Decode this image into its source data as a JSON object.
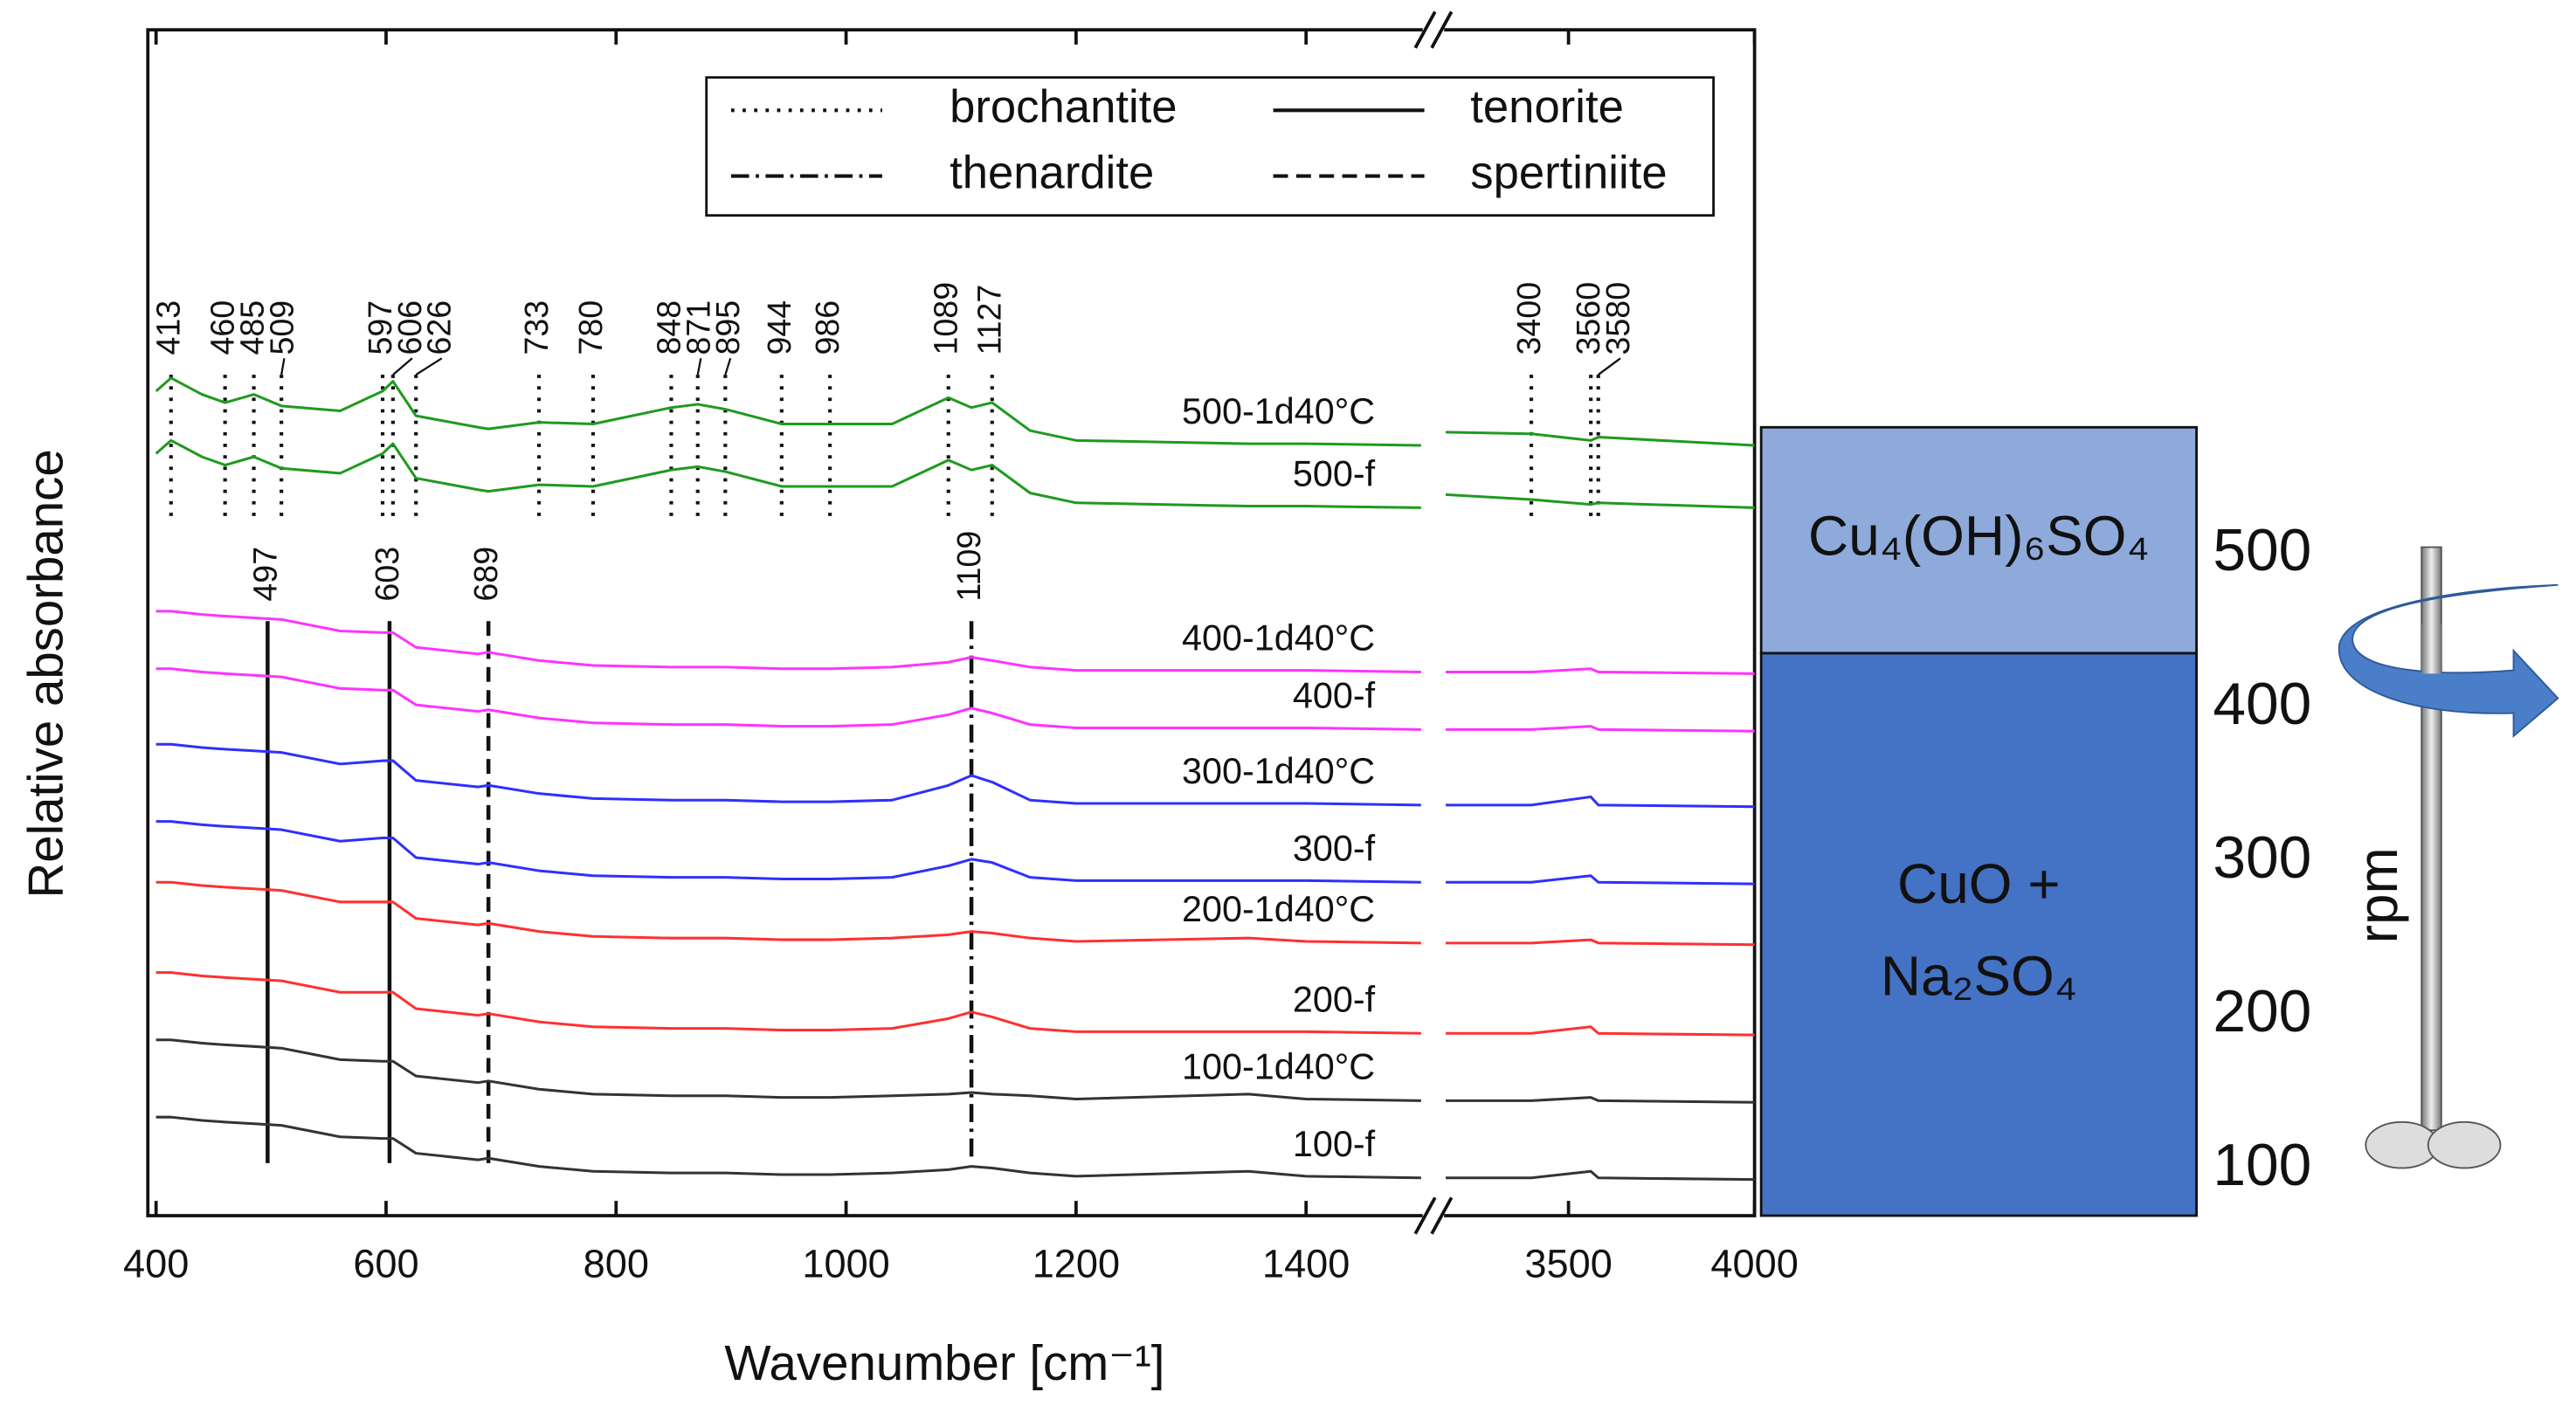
{
  "chart_data": [
    {
      "type": "line",
      "xlabel": "Wavenumber [cm⁻¹]",
      "ylabel": "Relative absorbance",
      "x": [
        400,
        413,
        440,
        460,
        485,
        509,
        560,
        597,
        606,
        626,
        680,
        689,
        733,
        780,
        848,
        871,
        895,
        944,
        986,
        1040,
        1089,
        1109,
        1127,
        1160,
        1200,
        1350,
        1400,
        1500,
        3170,
        3400,
        3560,
        3580,
        4000
      ],
      "xlim": [
        400,
        4000
      ],
      "xbreak": [
        1500,
        3170
      ],
      "xticks": [
        400,
        600,
        800,
        1000,
        1200,
        1400,
        3500,
        4000
      ],
      "ylim": [
        0,
        72.2
      ],
      "yticks": [],
      "series": [
        {
          "name": "500-1d40°C",
          "color": "#1f9a1f",
          "values": [
            50.2,
            51.0,
            50.0,
            49.5,
            50.0,
            49.3,
            49.0,
            50.2,
            50.8,
            48.7,
            48.0,
            47.9,
            48.3,
            48.2,
            49.2,
            49.4,
            49.1,
            48.2,
            48.2,
            48.2,
            49.8,
            49.2,
            49.5,
            47.8,
            47.2,
            47.0,
            47.0,
            46.9,
            47.7,
            47.6,
            47.2,
            47.4,
            46.9
          ]
        },
        {
          "name": "500-f",
          "color": "#1f9a1f",
          "values": [
            46.4,
            47.2,
            46.2,
            45.7,
            46.2,
            45.5,
            45.2,
            46.4,
            47.0,
            44.9,
            44.2,
            44.1,
            44.5,
            44.4,
            45.4,
            45.6,
            45.3,
            44.4,
            44.4,
            44.4,
            46.0,
            45.4,
            45.7,
            44.0,
            43.4,
            43.2,
            43.2,
            43.1,
            43.9,
            43.6,
            43.3,
            43.4,
            43.1
          ]
        },
        {
          "name": "400-1d40°C",
          "color": "#ff33ff",
          "values": [
            36.8,
            36.8,
            36.6,
            36.5,
            36.4,
            36.3,
            35.6,
            35.5,
            35.5,
            34.6,
            34.2,
            34.3,
            33.8,
            33.5,
            33.4,
            33.4,
            33.4,
            33.3,
            33.3,
            33.4,
            33.7,
            34.0,
            33.8,
            33.4,
            33.2,
            33.2,
            33.2,
            33.1,
            33.1,
            33.1,
            33.3,
            33.1,
            33.0
          ]
        },
        {
          "name": "400-f",
          "color": "#ff33ff",
          "values": [
            33.3,
            33.3,
            33.1,
            33.0,
            32.9,
            32.8,
            32.1,
            32.0,
            32.0,
            31.1,
            30.7,
            30.8,
            30.3,
            30.0,
            29.9,
            29.9,
            29.9,
            29.8,
            29.8,
            29.9,
            30.5,
            30.9,
            30.6,
            29.9,
            29.7,
            29.7,
            29.7,
            29.6,
            29.6,
            29.6,
            29.8,
            29.6,
            29.5
          ]
        },
        {
          "name": "300-1d40°C",
          "color": "#2f2fff",
          "values": [
            28.7,
            28.7,
            28.5,
            28.4,
            28.3,
            28.2,
            27.5,
            27.7,
            27.7,
            26.5,
            26.1,
            26.2,
            25.7,
            25.4,
            25.3,
            25.3,
            25.3,
            25.2,
            25.2,
            25.3,
            26.2,
            26.8,
            26.4,
            25.3,
            25.1,
            25.1,
            25.1,
            25.0,
            25.0,
            25.0,
            25.5,
            25.0,
            24.9
          ]
        },
        {
          "name": "300-f",
          "color": "#2f2fff",
          "values": [
            24.0,
            24.0,
            23.8,
            23.7,
            23.6,
            23.5,
            22.8,
            23.0,
            23.0,
            21.8,
            21.4,
            21.5,
            21.0,
            20.7,
            20.6,
            20.6,
            20.6,
            20.5,
            20.5,
            20.6,
            21.3,
            21.7,
            21.5,
            20.6,
            20.4,
            20.4,
            20.4,
            20.3,
            20.3,
            20.3,
            20.7,
            20.3,
            20.2
          ]
        },
        {
          "name": "200-1d40°C",
          "color": "#ff3030",
          "values": [
            20.3,
            20.3,
            20.1,
            20.0,
            19.9,
            19.8,
            19.1,
            19.1,
            19.1,
            18.1,
            17.7,
            17.8,
            17.3,
            17.0,
            16.9,
            16.9,
            16.9,
            16.8,
            16.8,
            16.9,
            17.1,
            17.3,
            17.2,
            16.9,
            16.7,
            16.9,
            16.7,
            16.6,
            16.6,
            16.6,
            16.8,
            16.6,
            16.5
          ]
        },
        {
          "name": "200-f",
          "color": "#ff3030",
          "values": [
            14.8,
            14.8,
            14.6,
            14.5,
            14.4,
            14.3,
            13.6,
            13.6,
            13.6,
            12.6,
            12.2,
            12.3,
            11.8,
            11.5,
            11.4,
            11.4,
            11.4,
            11.3,
            11.3,
            11.4,
            12.0,
            12.4,
            12.1,
            11.4,
            11.2,
            11.2,
            11.2,
            11.1,
            11.1,
            11.1,
            11.5,
            11.1,
            11.0
          ]
        },
        {
          "name": "100-1d40°C",
          "color": "#333333",
          "values": [
            10.7,
            10.7,
            10.5,
            10.4,
            10.3,
            10.2,
            9.5,
            9.4,
            9.4,
            8.5,
            8.1,
            8.2,
            7.7,
            7.4,
            7.3,
            7.3,
            7.3,
            7.2,
            7.2,
            7.3,
            7.4,
            7.5,
            7.4,
            7.3,
            7.1,
            7.4,
            7.1,
            7.0,
            7.0,
            7.0,
            7.2,
            7.0,
            6.9
          ]
        },
        {
          "name": "100-f",
          "color": "#333333",
          "values": [
            6.0,
            6.0,
            5.8,
            5.7,
            5.6,
            5.5,
            4.8,
            4.7,
            4.7,
            3.8,
            3.4,
            3.5,
            3.0,
            2.7,
            2.6,
            2.6,
            2.6,
            2.5,
            2.5,
            2.6,
            2.8,
            3.0,
            2.9,
            2.6,
            2.4,
            2.7,
            2.4,
            2.3,
            2.3,
            2.3,
            2.7,
            2.3,
            2.2
          ]
        }
      ],
      "reference_lines": [
        {
          "name": "brochantite",
          "style": "dotted",
          "values": [
            413,
            460,
            485,
            509,
            597,
            606,
            626,
            733,
            780,
            848,
            871,
            895,
            944,
            986,
            1089,
            1127,
            3400,
            3560,
            3580
          ]
        },
        {
          "name": "tenorite",
          "style": "solid",
          "values": [
            497,
            603
          ]
        },
        {
          "name": "thenardite",
          "style": "dashdot",
          "values": [
            1109
          ]
        },
        {
          "name": "spertiniite",
          "style": "dashed",
          "values": [
            689
          ]
        }
      ]
    },
    {
      "type": "range",
      "ylabel": "rpm",
      "ylim": [
        70,
        583
      ],
      "yticks": [
        100,
        200,
        300,
        400,
        500
      ],
      "regions": [
        {
          "label": [
            "Cu₄(OH)₆SO₄"
          ],
          "from": 436,
          "to": 583,
          "color": "#8eaadb"
        },
        {
          "label": [
            "CuO +",
            "Na₂SO₄"
          ],
          "from": 70,
          "to": 436,
          "color": "#4472c4"
        }
      ]
    }
  ]
}
